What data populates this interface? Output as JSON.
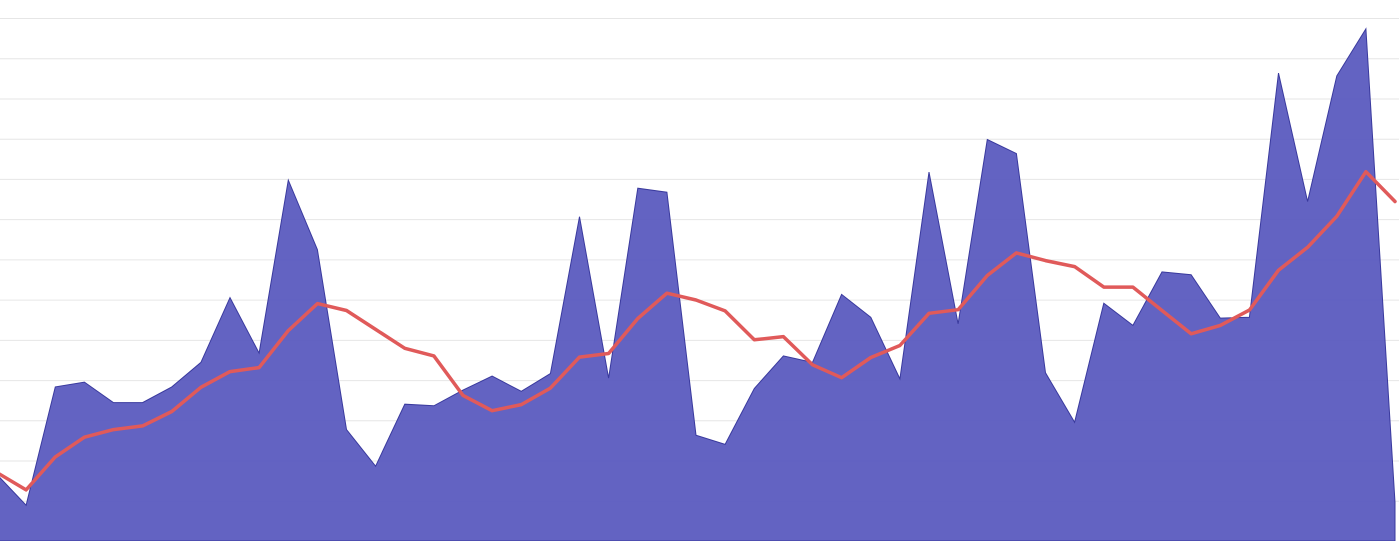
{
  "chart_data": {
    "type": "area",
    "title": "",
    "xlabel": "",
    "ylabel": "",
    "grid": true,
    "legend": "none",
    "x": [
      0,
      1,
      2,
      3,
      4,
      5,
      6,
      7,
      8,
      9,
      10,
      11,
      12,
      13,
      14,
      15,
      16,
      17,
      18,
      19,
      20,
      21,
      22,
      23,
      24,
      25,
      26,
      27,
      28,
      29,
      30,
      31,
      32,
      33,
      34,
      35,
      36,
      37,
      38,
      39,
      40,
      41,
      42,
      43,
      44,
      45,
      46,
      47,
      48
    ],
    "ylim": [
      0,
      13
    ],
    "series": [
      {
        "type": "area",
        "color": "#5b5bbf",
        "values": [
          1.65,
          0.89,
          3.83,
          3.95,
          3.44,
          3.44,
          3.83,
          4.44,
          6.05,
          4.67,
          8.97,
          7.24,
          2.77,
          1.86,
          3.4,
          3.36,
          3.75,
          4.1,
          3.72,
          4.16,
          8.06,
          4.05,
          8.77,
          8.67,
          2.63,
          2.4,
          3.79,
          4.6,
          4.44,
          6.13,
          5.56,
          4.03,
          9.17,
          5.4,
          9.98,
          9.63,
          4.18,
          2.95,
          5.91,
          5.36,
          6.69,
          6.62,
          5.54,
          5.56,
          11.63,
          8.44,
          11.56,
          12.73,
          0.96
        ]
      },
      {
        "type": "line",
        "color": "#e05a5a",
        "values": [
          1.7,
          1.27,
          2.09,
          2.58,
          2.77,
          2.86,
          3.22,
          3.82,
          4.21,
          4.31,
          5.23,
          5.9,
          5.73,
          5.26,
          4.79,
          4.6,
          3.62,
          3.24,
          3.39,
          3.8,
          4.57,
          4.66,
          5.53,
          6.16,
          5.99,
          5.72,
          5.0,
          5.08,
          4.38,
          4.06,
          4.56,
          4.86,
          5.66,
          5.75,
          6.6,
          7.16,
          6.97,
          6.82,
          6.31,
          6.31,
          5.73,
          5.15,
          5.36,
          5.74,
          6.73,
          7.3,
          8.07,
          9.18,
          8.44
        ]
      }
    ]
  }
}
